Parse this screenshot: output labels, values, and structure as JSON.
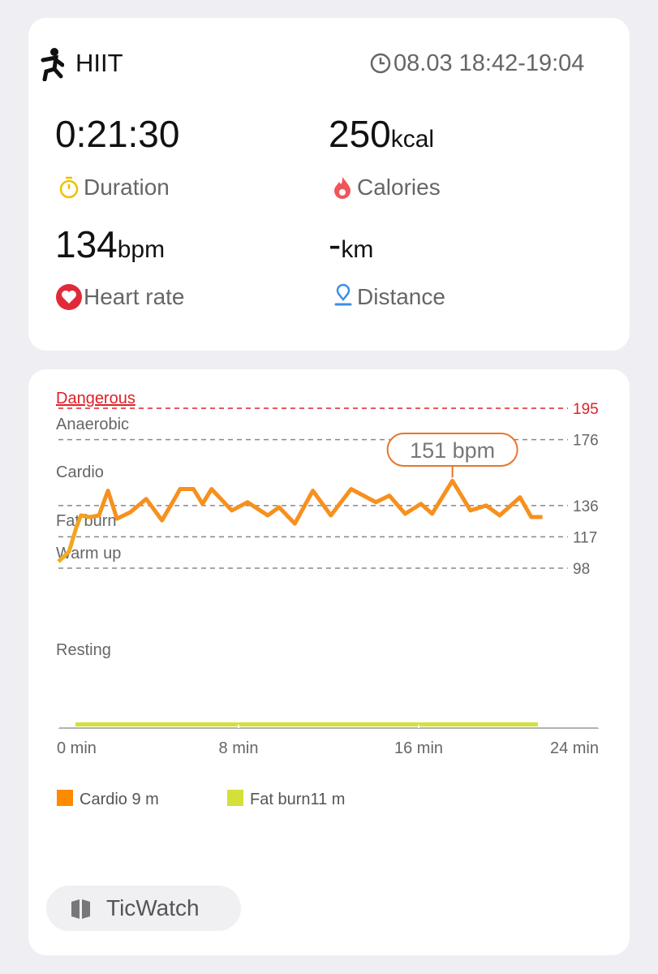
{
  "header": {
    "activity": "HIIT",
    "time": "08.03 18:42-19:04"
  },
  "metrics": [
    {
      "value": "0:21:30",
      "unit": null,
      "label": "Duration"
    },
    {
      "value": "250",
      "unit": "kcal",
      "label": "Calories"
    },
    {
      "value": "134",
      "unit": "bpm",
      "label": "Heart rate"
    },
    {
      "value": "-",
      "unit": "km",
      "label": "Distance"
    }
  ],
  "chart_data": {
    "type": "line",
    "color": "#f7901e",
    "start_color": "#f0b020",
    "zones": [
      "Dangerous",
      "Anaerobic",
      "Cardio",
      "Fat burn",
      "Warm up",
      "Resting"
    ],
    "danger_color": "#e0202a",
    "ylim": [
      98,
      195
    ],
    "yticks": [
      195,
      176,
      136,
      117,
      98
    ],
    "xlim": [
      0,
      24
    ],
    "xticks": [
      {
        "value": 0,
        "label": "0 min"
      },
      {
        "value": 8,
        "label": "8 min"
      },
      {
        "value": 16,
        "label": "16 min"
      },
      {
        "value": 24,
        "label": "24 min"
      }
    ],
    "x": [
      0,
      0.47,
      0.8,
      1.0,
      1.4,
      1.8,
      2.2,
      2.6,
      3.2,
      3.9,
      4.6,
      5.2,
      5.4,
      6.0,
      6.4,
      6.8,
      7.7,
      8.4,
      9.3,
      9.8,
      10.5,
      11.3,
      12.1,
      13.0,
      14.1,
      14.7,
      15.4,
      16.1,
      16.6,
      17.5,
      18.3,
      19.0,
      19.6,
      20.5,
      21.0,
      21.5
    ],
    "values": [
      102,
      108,
      123,
      130,
      129,
      130,
      145,
      128,
      132,
      140,
      127,
      141,
      146,
      146,
      137,
      146,
      133,
      138,
      130,
      135,
      125,
      145,
      130,
      146,
      138,
      142,
      131,
      137,
      131,
      151,
      133,
      136,
      130,
      141,
      129,
      129
    ],
    "annotation": "151 bpm",
    "legend": [
      {
        "name": "Cardio 9 m",
        "color": "#ff8a00"
      },
      {
        "name": "Fat burn11 m",
        "color": "#d4e03a"
      }
    ]
  },
  "footer": {
    "brand": "TicWatch"
  }
}
